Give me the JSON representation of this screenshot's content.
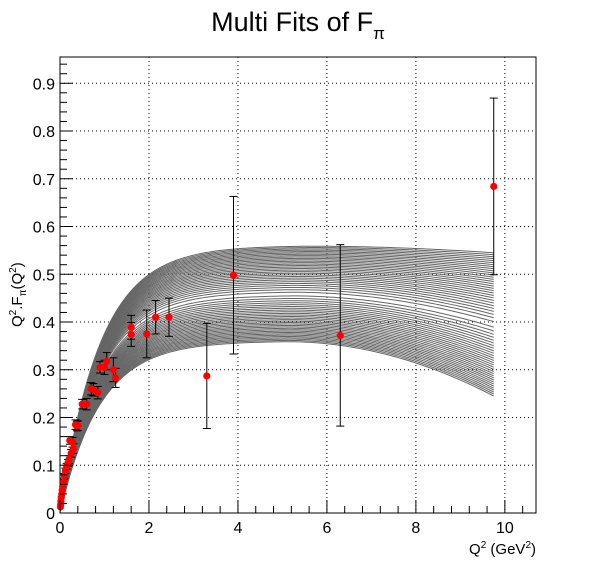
{
  "chart_data": {
    "type": "scatter",
    "title": "Multi Fits of F",
    "title_subscript": "π",
    "xlabel": {
      "base": "Q",
      "sup": "2",
      "unit_open": " (GeV",
      "unit_sup": "2",
      "unit_close": ")"
    },
    "ylabel": {
      "q": "Q",
      "q_sup": "2",
      "dot": ".F",
      "sub": "π",
      "paren_open": "(Q",
      "paren_sup": "2",
      "paren_close": ")"
    },
    "xlim": [
      0,
      10.7
    ],
    "ylim": [
      0,
      0.955
    ],
    "grid": true,
    "x_ticks": [
      0,
      2,
      4,
      6,
      8,
      10
    ],
    "x_tick_labels": [
      "0",
      "2",
      "4",
      "6",
      "8",
      "10"
    ],
    "y_ticks": [
      0,
      0.1,
      0.2,
      0.3,
      0.4,
      0.5,
      0.6,
      0.7,
      0.8,
      0.9
    ],
    "y_tick_labels": [
      "0",
      "0.1",
      "0.2",
      "0.3",
      "0.4",
      "0.5",
      "0.6",
      "0.7",
      "0.8",
      "0.9"
    ],
    "fit_band": {
      "color": "#666666",
      "n_curves": 60,
      "x_max": 9.75,
      "upper": {
        "peak_y": 0.56,
        "end_y": 0.545
      },
      "lower": {
        "peak_y": 0.36,
        "end_y": 0.245
      }
    },
    "points": [
      {
        "x": 0.01,
        "y": 0.013,
        "err": 0.003
      },
      {
        "x": 0.015,
        "y": 0.018,
        "err": 0.003
      },
      {
        "x": 0.02,
        "y": 0.025,
        "err": 0.003
      },
      {
        "x": 0.03,
        "y": 0.033,
        "err": 0.004
      },
      {
        "x": 0.04,
        "y": 0.04,
        "err": 0.004
      },
      {
        "x": 0.05,
        "y": 0.048,
        "err": 0.004
      },
      {
        "x": 0.06,
        "y": 0.055,
        "err": 0.004
      },
      {
        "x": 0.08,
        "y": 0.065,
        "err": 0.005
      },
      {
        "x": 0.1,
        "y": 0.078,
        "err": 0.005
      },
      {
        "x": 0.12,
        "y": 0.088,
        "err": 0.006
      },
      {
        "x": 0.15,
        "y": 0.098,
        "err": 0.006
      },
      {
        "x": 0.18,
        "y": 0.105,
        "err": 0.007
      },
      {
        "x": 0.2,
        "y": 0.112,
        "err": 0.008
      },
      {
        "x": 0.22,
        "y": 0.152,
        "err": 0.008
      },
      {
        "x": 0.25,
        "y": 0.125,
        "err": 0.008
      },
      {
        "x": 0.28,
        "y": 0.148,
        "err": 0.01
      },
      {
        "x": 0.3,
        "y": 0.135,
        "err": 0.01
      },
      {
        "x": 0.35,
        "y": 0.185,
        "err": 0.01
      },
      {
        "x": 0.38,
        "y": 0.182,
        "err": 0.01
      },
      {
        "x": 0.4,
        "y": 0.183,
        "err": 0.01
      },
      {
        "x": 0.5,
        "y": 0.228,
        "err": 0.01
      },
      {
        "x": 0.6,
        "y": 0.228,
        "err": 0.012
      },
      {
        "x": 0.7,
        "y": 0.26,
        "err": 0.013
      },
      {
        "x": 0.75,
        "y": 0.258,
        "err": 0.013
      },
      {
        "x": 0.85,
        "y": 0.252,
        "err": 0.013
      },
      {
        "x": 0.9,
        "y": 0.305,
        "err": 0.012
      },
      {
        "x": 1.0,
        "y": 0.305,
        "err": 0.015
      },
      {
        "x": 1.05,
        "y": 0.318,
        "err": 0.018
      },
      {
        "x": 1.2,
        "y": 0.3,
        "err": 0.025
      },
      {
        "x": 1.25,
        "y": 0.283,
        "err": 0.02
      },
      {
        "x": 1.6,
        "y": 0.389,
        "err": 0.025
      },
      {
        "x": 1.6,
        "y": 0.374,
        "err": 0.025
      },
      {
        "x": 1.95,
        "y": 0.375,
        "err": 0.05
      },
      {
        "x": 2.15,
        "y": 0.41,
        "err": 0.035
      },
      {
        "x": 2.45,
        "y": 0.41,
        "err": 0.04
      },
      {
        "x": 3.3,
        "y": 0.287,
        "err": 0.11
      },
      {
        "x": 3.9,
        "y": 0.498,
        "err": 0.165
      },
      {
        "x": 6.3,
        "y": 0.372,
        "err": 0.19
      },
      {
        "x": 9.75,
        "y": 0.684,
        "err": 0.185
      }
    ]
  }
}
